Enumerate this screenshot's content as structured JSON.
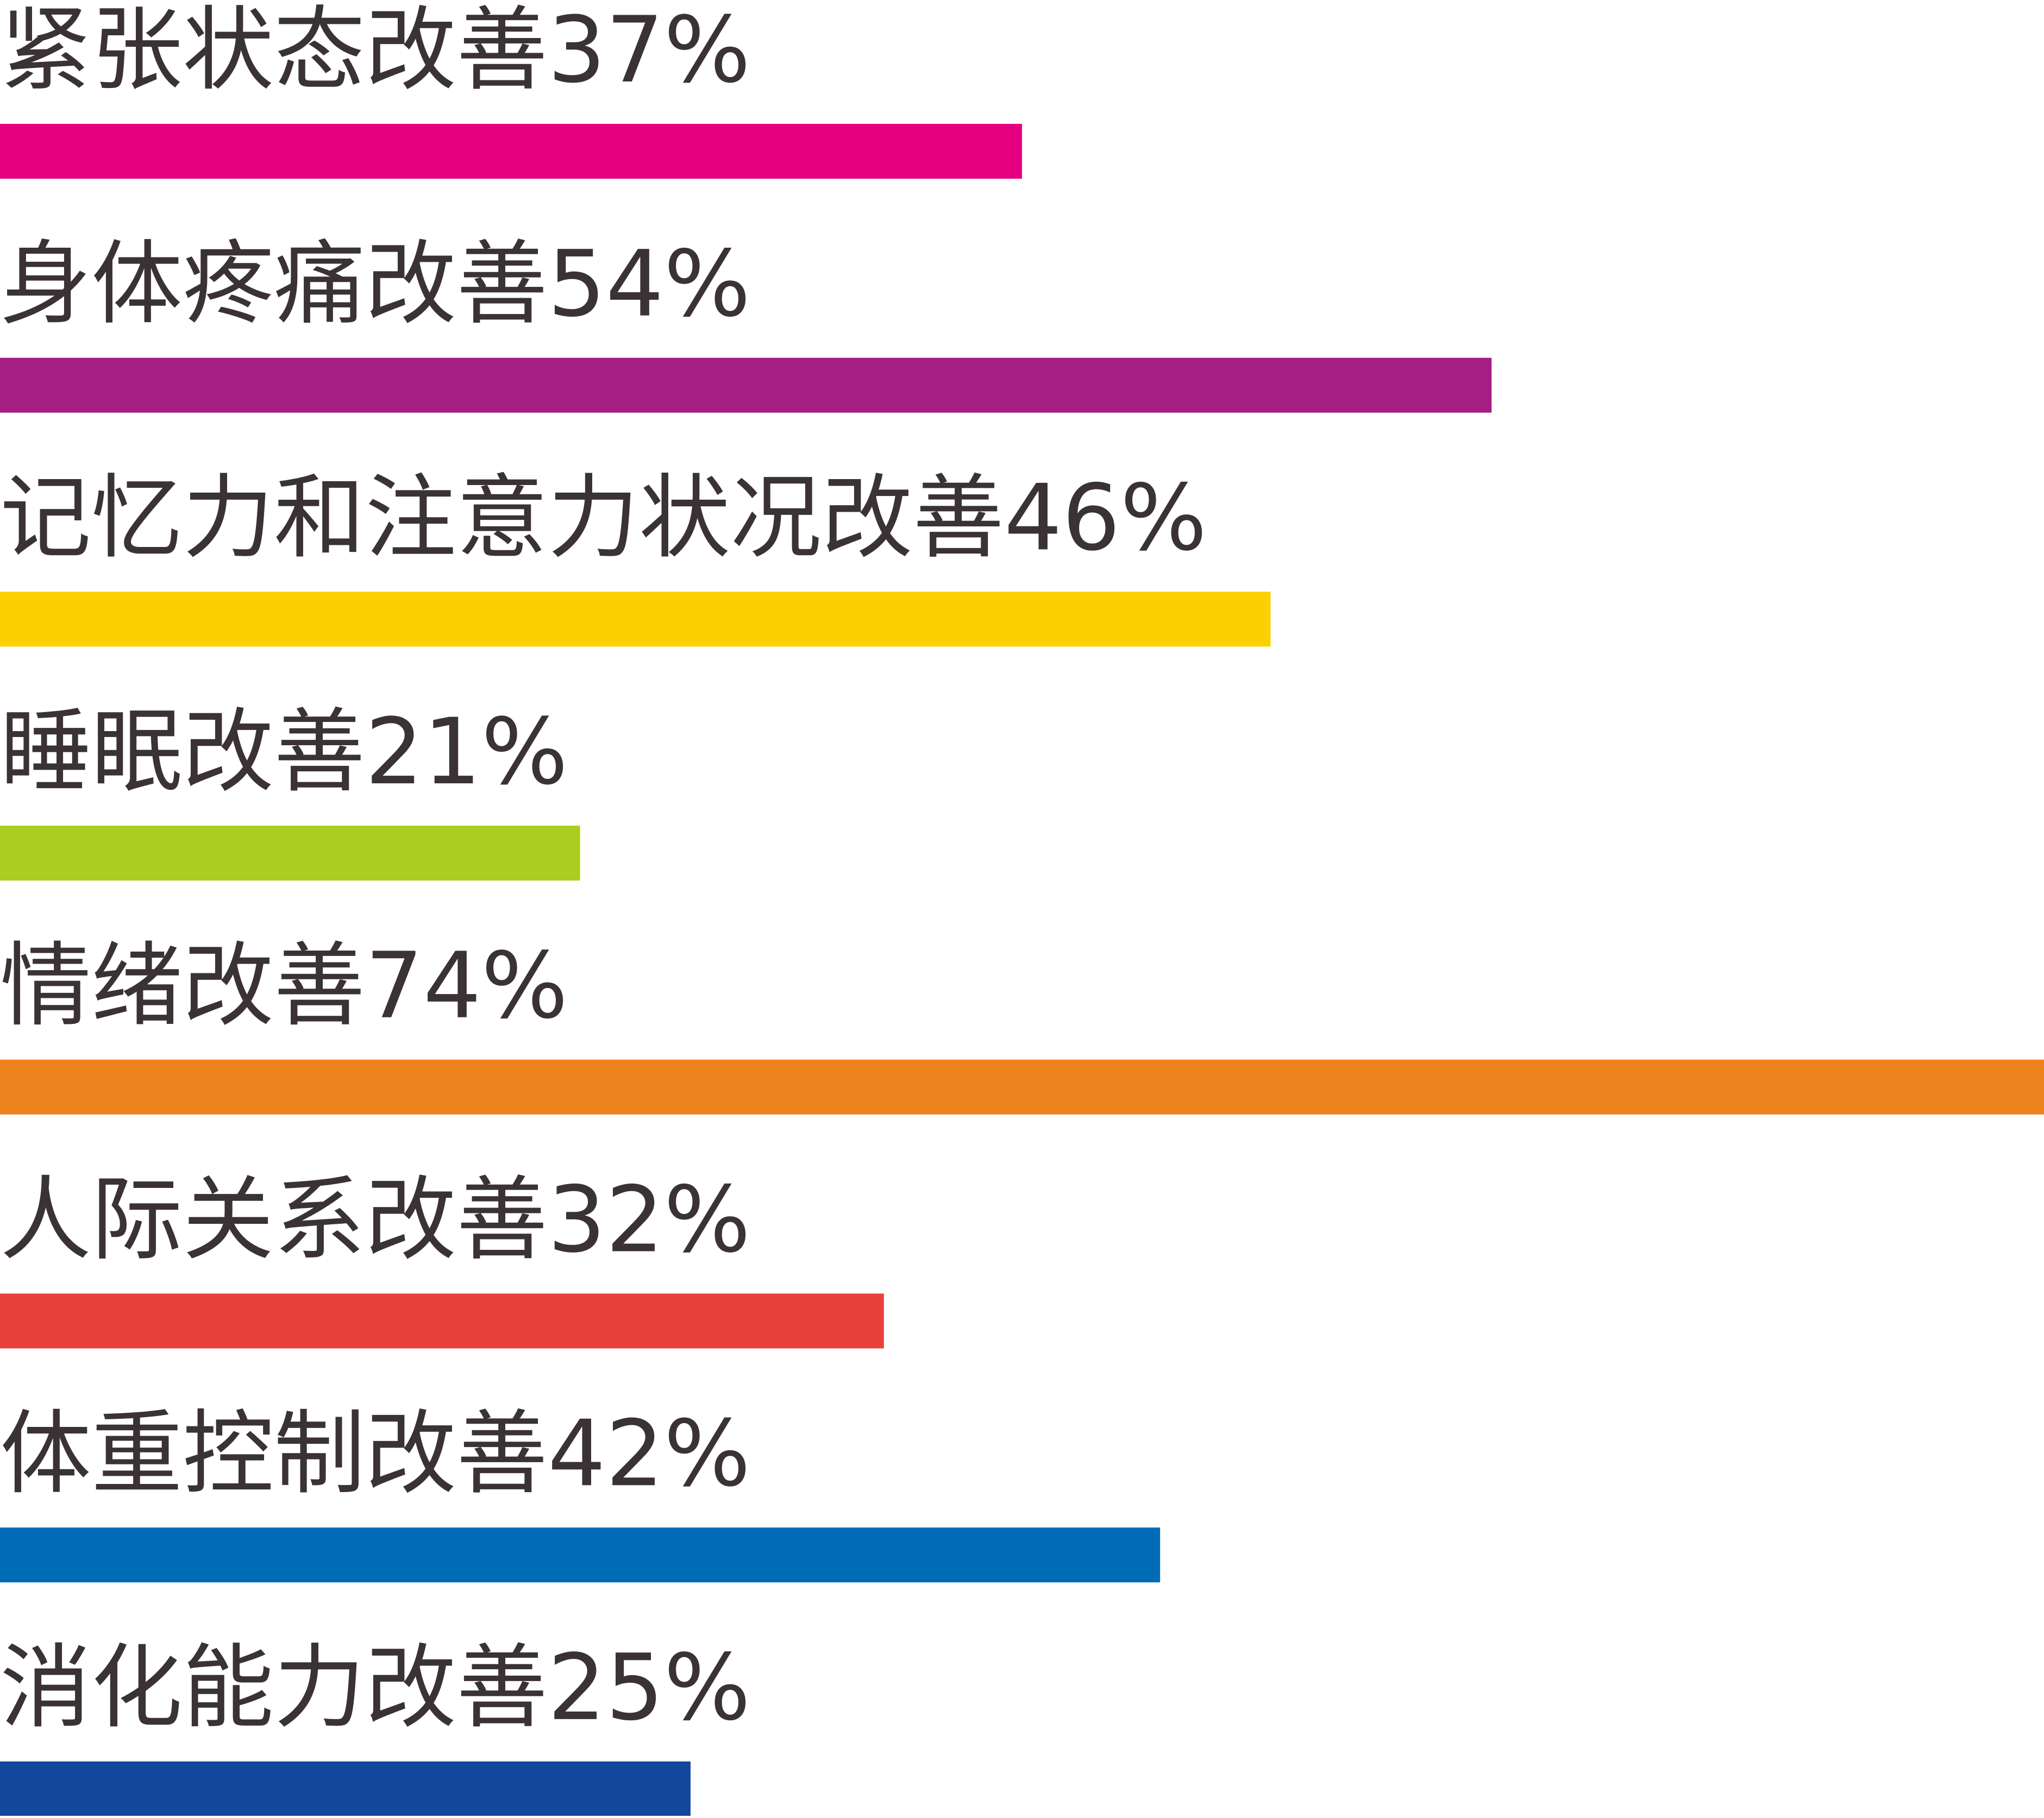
{
  "chart_data": {
    "type": "bar",
    "orientation": "horizontal",
    "categories": [
      "紧张状态改善",
      "身体疼痛改善",
      "记忆力和注意力状况改善",
      "睡眠改善",
      "情绪改善",
      "人际关系改善",
      "体重控制改善",
      "消化能力改善"
    ],
    "values": [
      37,
      54,
      46,
      21,
      74,
      32,
      42,
      25
    ],
    "value_labels": [
      "37%",
      "54%",
      "46%",
      "21%",
      "74%",
      "32%",
      "42%",
      "25%"
    ],
    "colors": [
      "#e4007f",
      "#a61e83",
      "#fcd000",
      "#aacd20",
      "#ee831e",
      "#e8413c",
      "#006cb7",
      "#13479b"
    ]
  }
}
